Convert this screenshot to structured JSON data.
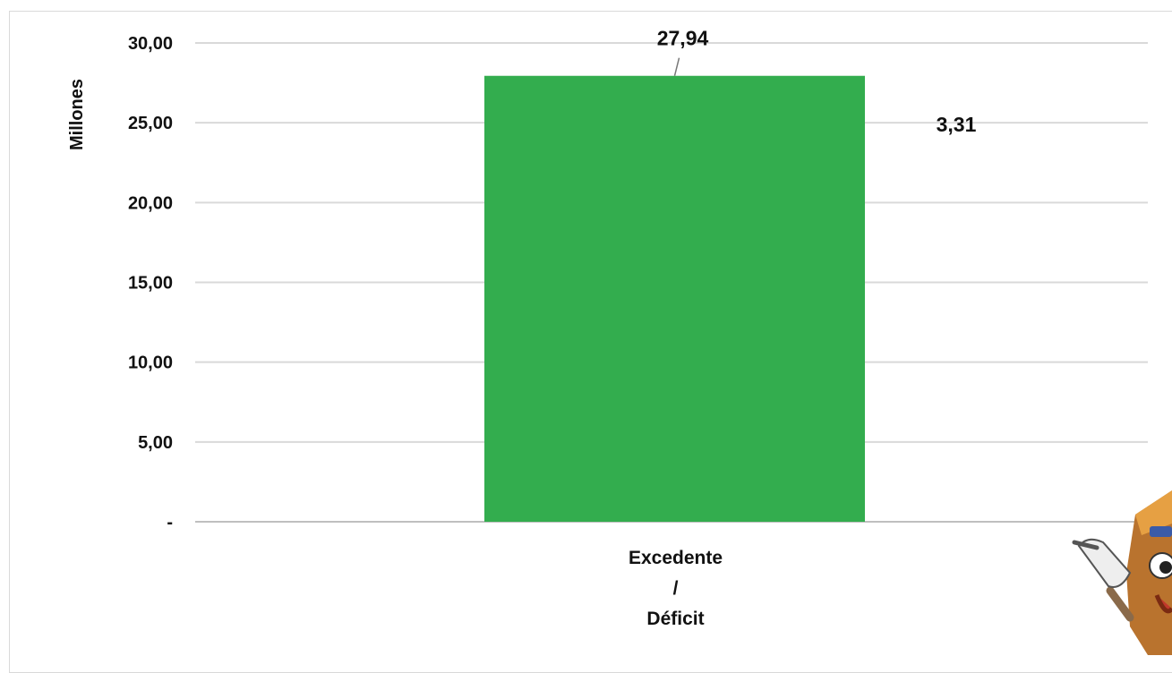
{
  "chart_data": {
    "type": "bar",
    "ylabel": "Millones",
    "ylim": [
      0,
      30
    ],
    "yticks": [
      "-",
      "5,00",
      "10,00",
      "15,00",
      "20,00",
      "25,00",
      "30,00"
    ],
    "ytick_values": [
      0,
      5,
      10,
      15,
      20,
      25,
      30
    ],
    "grid": true,
    "categories": [
      "Excedente / Déficit"
    ],
    "category_label_lines": [
      "Excedente",
      "/",
      "Déficit"
    ],
    "values": [
      27.94
    ],
    "value_labels": [
      "27,94"
    ],
    "bar_color": "#33ad4e",
    "annotations": [
      {
        "text": "3,31"
      }
    ]
  },
  "colors": {
    "bar": "#33ad4e",
    "grid": "#d9d9d9"
  },
  "decorations": {
    "mascot": "cartoon-mascot-pointing"
  }
}
